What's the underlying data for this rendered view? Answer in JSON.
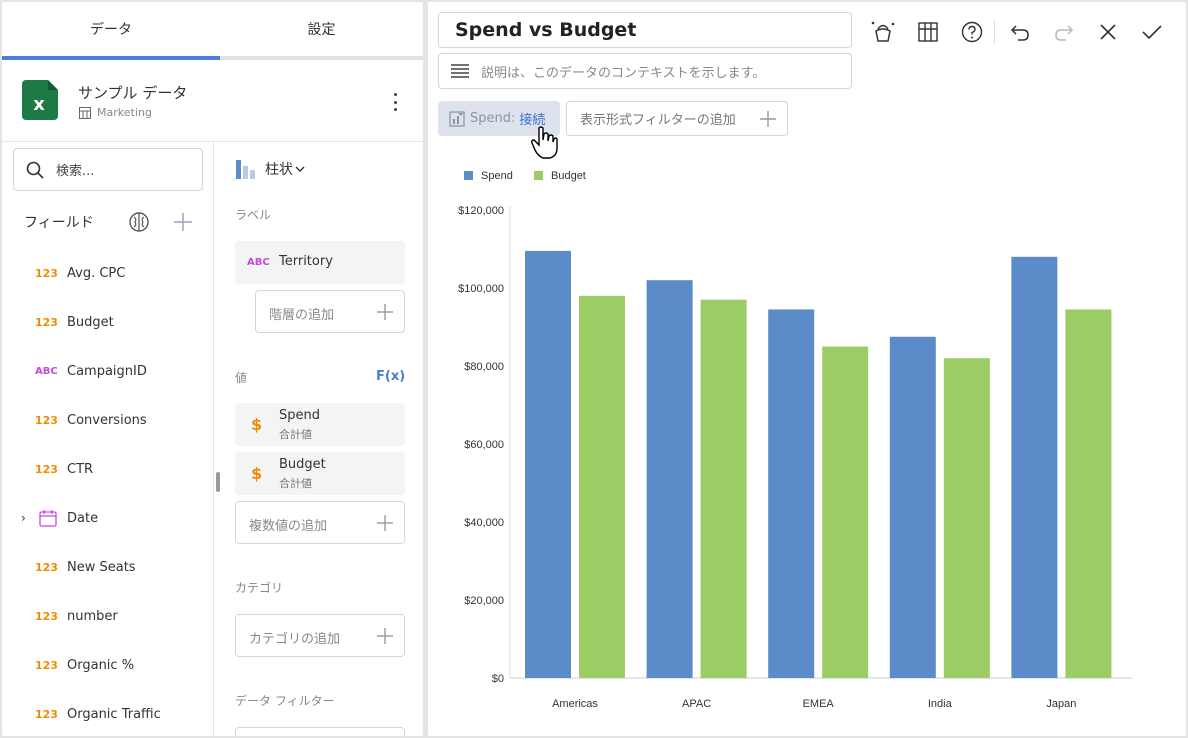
{
  "left_tabs": {
    "data": "データ",
    "settings": "設定"
  },
  "source": {
    "title": "サンプル データ",
    "subtitle": "Marketing",
    "icon": "excel-icon"
  },
  "search": {
    "placeholder": "検索..."
  },
  "fields_header": "フィールド",
  "fields": [
    {
      "type": "123",
      "name": "Avg. CPC"
    },
    {
      "type": "123",
      "name": "Budget"
    },
    {
      "type": "ABC",
      "name": "CampaignID"
    },
    {
      "type": "123",
      "name": "Conversions"
    },
    {
      "type": "123",
      "name": "CTR"
    },
    {
      "type": "date",
      "name": "Date"
    },
    {
      "type": "123",
      "name": "New Seats"
    },
    {
      "type": "123",
      "name": "number"
    },
    {
      "type": "123",
      "name": "Organic %"
    },
    {
      "type": "123",
      "name": "Organic Traffic"
    }
  ],
  "config": {
    "chart_type": "柱状",
    "label_section": "ラベル",
    "label_field": {
      "type": "ABC",
      "name": "Territory"
    },
    "add_hierarchy": "階層の追加",
    "values_section": "値",
    "fx": "F(x)",
    "values": [
      {
        "name": "Spend",
        "agg": "合計値"
      },
      {
        "name": "Budget",
        "agg": "合計値"
      }
    ],
    "add_values": "複数値の追加",
    "category_section": "カテゴリ",
    "add_category": "カテゴリの追加",
    "data_filter_section": "データ フィルター"
  },
  "editor": {
    "title": "Spend vs Budget",
    "description_placeholder": "説明は、このデータのコンテキストを示します。",
    "filter_chip": {
      "key": "Spend:",
      "value": "接続"
    },
    "add_format_filter": "表示形式フィルターの追加"
  },
  "colors": {
    "accent": "#4a7fd4",
    "spend": "#5b8cc9",
    "budget": "#9ccc65",
    "number_type": "#f08c00",
    "text_type": "#c44bd8"
  },
  "chart_data": {
    "type": "bar",
    "categories": [
      "Americas",
      "APAC",
      "EMEA",
      "India",
      "Japan"
    ],
    "series": [
      {
        "name": "Spend",
        "values": [
          109500,
          102000,
          94500,
          87500,
          108000
        ]
      },
      {
        "name": "Budget",
        "values": [
          98000,
          97000,
          85000,
          82000,
          94500
        ]
      }
    ],
    "y_ticks": [
      "$0",
      "$20,000",
      "$40,000",
      "$60,000",
      "$80,000",
      "$100,000",
      "$120,000"
    ],
    "ylim": [
      0,
      120000
    ],
    "legend": "top-left",
    "grid": false
  }
}
